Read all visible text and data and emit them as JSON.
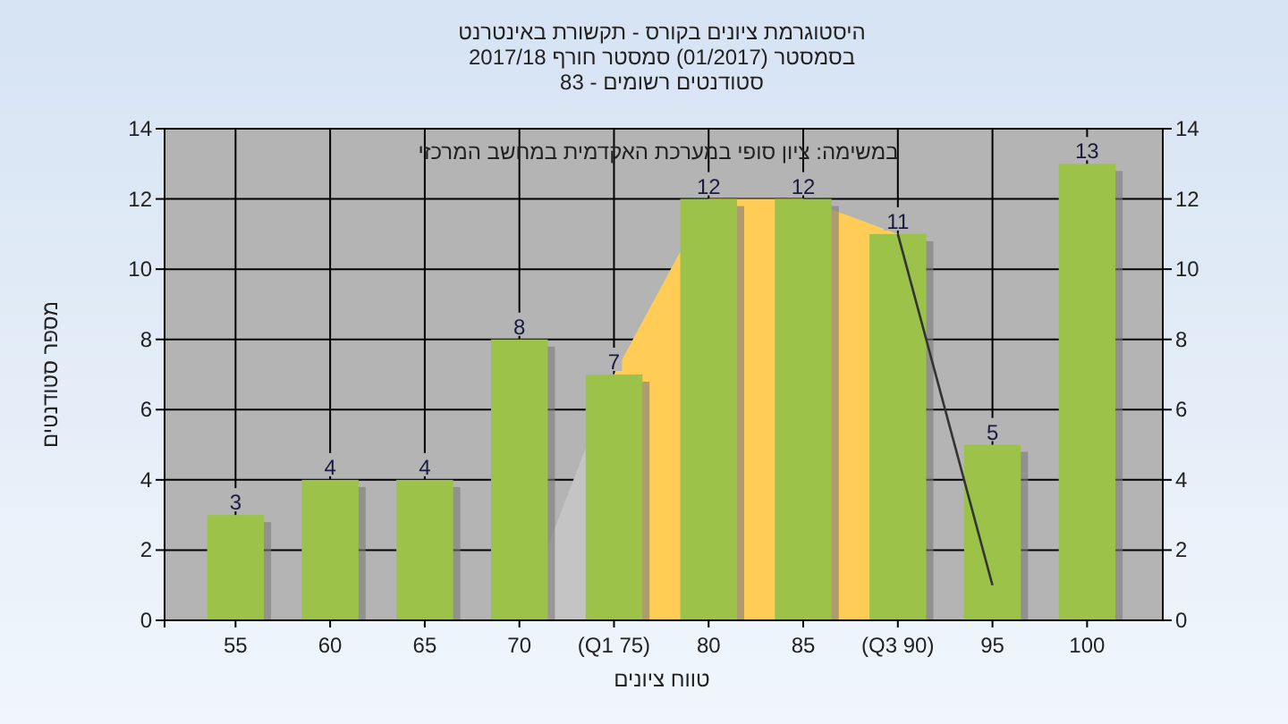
{
  "chart_data": {
    "type": "bar",
    "title": "היסטוגרמת ציונים בקורס - תקשורת באינטרנט",
    "subtitle": "בסמסטר  (01/2017)  סמסטר חורף 2017/18",
    "annotations": [
      "סטודנטים רשומים - 83",
      "במשימה: ציון סופי במערכת האקדמית במחשב המרכזי"
    ],
    "xlabel": "טווח ציונים",
    "ylabel": "מספר סטודנטים",
    "categories": [
      "55",
      "60",
      "65",
      "70",
      "(Q1 75)",
      "80",
      "85",
      "(Q3 90)",
      "95",
      "100"
    ],
    "series": [
      {
        "type": "area",
        "color": "#c4c4c4",
        "values": [
          null,
          null,
          null,
          0,
          7,
          null,
          null,
          null,
          null,
          null
        ]
      },
      {
        "type": "area",
        "color": "#ffcc55",
        "values": [
          null,
          null,
          null,
          null,
          7,
          12,
          12,
          11,
          null,
          null
        ]
      },
      {
        "color": "#9cc24a",
        "values": [
          3,
          4,
          4,
          8,
          7,
          12,
          12,
          11,
          5,
          13
        ],
        "value_labels": [
          "3",
          "4",
          "4",
          "8",
          "7",
          "12",
          "12",
          "11",
          "5",
          "13"
        ]
      },
      {
        "type": "line",
        "color": "#333333",
        "values": [
          null,
          null,
          null,
          null,
          null,
          null,
          null,
          11,
          1,
          null
        ]
      }
    ],
    "ylim": [
      0,
      14
    ],
    "yticks": [
      0,
      2,
      4,
      6,
      8,
      10,
      12,
      14
    ],
    "y2lim": [
      0,
      14
    ],
    "y2ticks": [
      0,
      2,
      4,
      6,
      8,
      10,
      12,
      14
    ],
    "grid": true
  }
}
